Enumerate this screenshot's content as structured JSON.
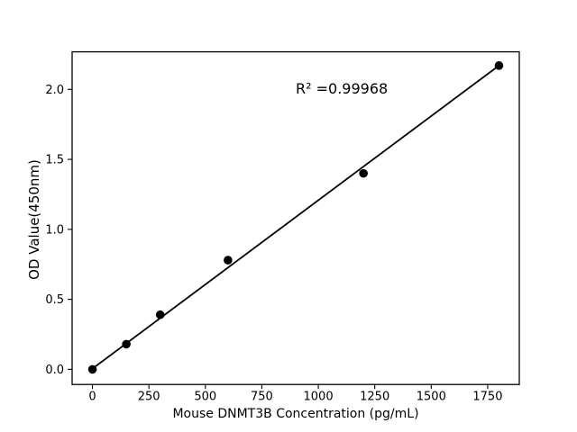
{
  "figure": {
    "background": "#ffffff",
    "text_color": "#000000"
  },
  "chart_data": {
    "type": "scatter",
    "x": [
      0,
      150,
      300,
      600,
      1200,
      1800
    ],
    "y": [
      0.0,
      0.18,
      0.39,
      0.78,
      1.4,
      2.17
    ],
    "fit_line": {
      "x": [
        0,
        1800
      ],
      "y": [
        0.005,
        2.17
      ],
      "r_squared": 0.99968
    },
    "annotation": "R² =0.99968",
    "title": "",
    "xlabel": "Mouse DNMT3B Concentration (pg/mL)",
    "ylabel": "OD Value(450nm)",
    "xlim": [
      -90,
      1890
    ],
    "ylim": [
      -0.108,
      2.268
    ],
    "x_ticks": [
      0,
      250,
      500,
      750,
      1000,
      1250,
      1500,
      1750
    ],
    "y_ticks": [
      0.0,
      0.5,
      1.0,
      1.5,
      2.0
    ],
    "grid": false,
    "legend": false,
    "marker_color": "#000000",
    "line_color": "#000000",
    "spine_color": "#000000"
  }
}
